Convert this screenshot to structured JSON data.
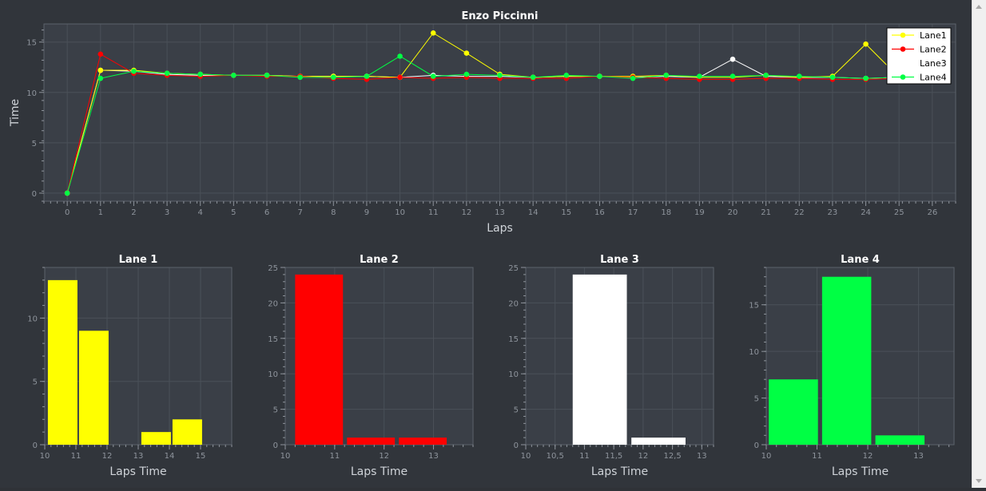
{
  "chart_data": [
    {
      "type": "line",
      "title": "Enzo Piccinni",
      "xlabel": "Laps",
      "ylabel": "Time",
      "xlim": [
        -0.7,
        26.7
      ],
      "ylim": [
        -0.8,
        16.8
      ],
      "xticks": [
        0,
        1,
        2,
        3,
        4,
        5,
        6,
        7,
        8,
        9,
        10,
        11,
        12,
        13,
        14,
        15,
        16,
        17,
        18,
        19,
        20,
        21,
        22,
        23,
        24,
        25,
        26
      ],
      "yticks": [
        0,
        5,
        10,
        15
      ],
      "grid": true,
      "legend_position": "top-right",
      "x": [
        0,
        1,
        2,
        3,
        4,
        5,
        6,
        7,
        8,
        9,
        10,
        11,
        12,
        13,
        14,
        15,
        16,
        17,
        18,
        19,
        20,
        21,
        22,
        23,
        24,
        25
      ],
      "series": [
        {
          "name": "Lane1",
          "color": "#ffff00",
          "values": [
            0,
            12.2,
            12.2,
            11.9,
            11.8,
            11.7,
            11.7,
            11.6,
            11.6,
            11.6,
            11.5,
            15.9,
            13.9,
            11.8,
            11.5,
            11.6,
            11.6,
            11.6,
            11.7,
            11.5,
            11.5,
            11.7,
            11.5,
            11.6,
            14.8,
            11.5
          ]
        },
        {
          "name": "Lane2",
          "color": "#ff0000",
          "values": [
            0,
            13.8,
            11.9,
            11.7,
            11.6,
            11.7,
            11.6,
            11.6,
            11.4,
            11.3,
            11.5,
            11.4,
            11.5,
            11.4,
            11.4,
            11.4,
            11.6,
            11.5,
            11.4,
            11.3,
            11.3,
            11.4,
            11.4,
            11.3,
            11.3,
            11.4
          ]
        },
        {
          "name": "Lane3",
          "color": "#ffffff",
          "values": [
            0,
            12.2,
            12.1,
            11.8,
            11.7,
            11.7,
            11.7,
            11.6,
            11.6,
            11.6,
            11.5,
            11.7,
            11.6,
            11.6,
            11.5,
            11.6,
            11.6,
            11.5,
            11.6,
            11.5,
            13.3,
            11.6,
            11.5,
            11.5,
            11.4,
            11.5
          ]
        },
        {
          "name": "Lane4",
          "color": "#00ff44",
          "values": [
            0,
            11.4,
            12.1,
            11.9,
            11.8,
            11.7,
            11.7,
            11.5,
            11.5,
            11.6,
            13.6,
            11.6,
            11.8,
            11.7,
            11.5,
            11.7,
            11.6,
            11.4,
            11.7,
            11.6,
            11.6,
            11.7,
            11.6,
            11.5,
            11.4,
            11.5
          ]
        }
      ]
    },
    {
      "type": "bar",
      "title": "Lane 1",
      "xlabel": "Laps Time",
      "ylabel": "",
      "color": "#ffff00",
      "xlim": [
        10,
        16
      ],
      "ylim": [
        0,
        14
      ],
      "xticks": [
        "10",
        "11",
        "12",
        "13",
        "14",
        "15"
      ],
      "xtick_values": [
        10,
        11,
        12,
        13,
        14,
        15
      ],
      "yticks": [
        0,
        5,
        10
      ],
      "bins": [
        [
          10.1,
          11.1
        ],
        [
          11.1,
          12.1
        ],
        [
          13.1,
          14.1
        ],
        [
          14.1,
          15.1
        ]
      ],
      "values": [
        13,
        9,
        1,
        2
      ]
    },
    {
      "type": "bar",
      "title": "Lane 2",
      "xlabel": "Laps Time",
      "ylabel": "",
      "color": "#ff0000",
      "xlim": [
        10,
        13.8
      ],
      "ylim": [
        0,
        25
      ],
      "xticks": [
        "10",
        "11",
        "12",
        "13"
      ],
      "xtick_values": [
        10,
        11,
        12,
        13
      ],
      "yticks": [
        0,
        5,
        10,
        15,
        20,
        25
      ],
      "bins": [
        [
          10.2,
          11.2
        ],
        [
          11.25,
          12.25
        ],
        [
          12.3,
          13.3
        ]
      ],
      "values": [
        24,
        1,
        1
      ]
    },
    {
      "type": "bar",
      "title": "Lane 3",
      "xlabel": "Laps Time",
      "ylabel": "",
      "color": "#ffffff",
      "xlim": [
        10,
        13.2
      ],
      "ylim": [
        0,
        25
      ],
      "xticks": [
        "10",
        "10,5",
        "11",
        "11,5",
        "12",
        "12,5",
        "13"
      ],
      "xtick_values": [
        10,
        10.5,
        11,
        11.5,
        12,
        12.5,
        13
      ],
      "yticks": [
        0,
        5,
        10,
        15,
        20,
        25
      ],
      "bins": [
        [
          10.8,
          11.75
        ],
        [
          11.8,
          12.75
        ]
      ],
      "values": [
        24,
        1
      ]
    },
    {
      "type": "bar",
      "title": "Lane 4",
      "xlabel": "Laps Time",
      "ylabel": "",
      "color": "#00ff44",
      "xlim": [
        10,
        13.7
      ],
      "ylim": [
        0,
        19
      ],
      "xticks": [
        "10",
        "11",
        "12",
        "13"
      ],
      "xtick_values": [
        10,
        11,
        12,
        13
      ],
      "yticks": [
        0,
        5,
        10,
        15
      ],
      "bins": [
        [
          10.05,
          11.05
        ],
        [
          11.1,
          12.1
        ],
        [
          12.15,
          13.15
        ]
      ],
      "values": [
        7,
        18,
        1
      ]
    }
  ]
}
